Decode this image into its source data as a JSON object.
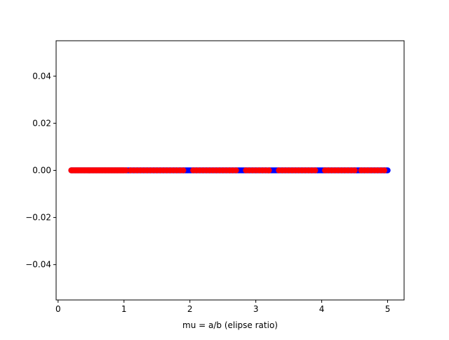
{
  "chart_data": {
    "type": "scatter",
    "title": "",
    "xlabel": "mu = a/b (elipse ratio)",
    "ylabel": "",
    "xlim": [
      -0.03,
      5.25
    ],
    "ylim": [
      -0.055,
      0.055
    ],
    "x_ticks": [
      0,
      1,
      2,
      3,
      4,
      5
    ],
    "x_tick_labels": [
      "0",
      "1",
      "2",
      "3",
      "4",
      "5"
    ],
    "y_ticks": [
      -0.04,
      -0.02,
      0.0,
      0.02,
      0.04
    ],
    "y_tick_labels": [
      "−0.04",
      "−0.02",
      "0.00",
      "0.02",
      "0.04"
    ],
    "grid": false,
    "legend": "none",
    "series": [
      {
        "color": "#0000ff",
        "x_range": [
          0.2,
          5.0
        ],
        "y": 0.0,
        "point_count": 240
      },
      {
        "color": "#ff0000",
        "x_range": [
          0.2,
          4.95
        ],
        "y": 0.0,
        "x_values": [
          0.2,
          0.22,
          0.24,
          0.26,
          0.28,
          0.3,
          0.32,
          0.34,
          0.36,
          0.38,
          0.4,
          0.42,
          0.44,
          0.46,
          0.48,
          0.5,
          0.52,
          0.54,
          0.56,
          0.58,
          0.6,
          0.62,
          0.64,
          0.66,
          0.68,
          0.7,
          0.72,
          0.74,
          0.76,
          0.78,
          0.8,
          0.82,
          0.84,
          0.86,
          0.88,
          0.9,
          0.92,
          0.94,
          0.96,
          0.98,
          1.0,
          1.03,
          1.1,
          1.15,
          1.2,
          1.25,
          1.3,
          1.35,
          1.4,
          1.45,
          1.5,
          1.55,
          1.6,
          1.65,
          1.7,
          1.75,
          1.8,
          1.85,
          1.9,
          2.05,
          2.1,
          2.15,
          2.2,
          2.25,
          2.3,
          2.35,
          2.4,
          2.45,
          2.5,
          2.55,
          2.6,
          2.65,
          2.7,
          2.85,
          2.9,
          2.95,
          3.0,
          3.05,
          3.1,
          3.15,
          3.2,
          3.35,
          3.4,
          3.45,
          3.5,
          3.55,
          3.6,
          3.65,
          3.7,
          3.75,
          3.8,
          3.85,
          3.9,
          4.05,
          4.1,
          4.15,
          4.2,
          4.25,
          4.3,
          4.35,
          4.4,
          4.45,
          4.5,
          4.6,
          4.65,
          4.7,
          4.75,
          4.8,
          4.85,
          4.9,
          4.95
        ]
      }
    ]
  }
}
